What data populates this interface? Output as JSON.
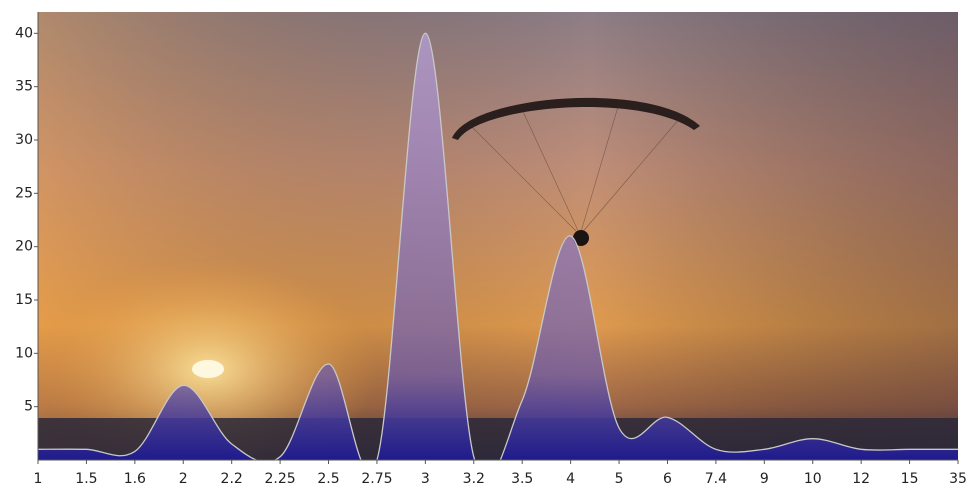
{
  "chart_data": {
    "type": "area",
    "categories": [
      "1",
      "1.5",
      "1.6",
      "2",
      "2.2",
      "2.25",
      "2.5",
      "2.75",
      "3",
      "3.2",
      "3.5",
      "4",
      "5",
      "6",
      "7.4",
      "9",
      "10",
      "12",
      "15",
      "35"
    ],
    "values": [
      1,
      1,
      0.8,
      7,
      1.5,
      0.3,
      9,
      0,
      40,
      0.3,
      5.6,
      21,
      3,
      4,
      1,
      1,
      2,
      1,
      1,
      1
    ],
    "color": "#6c5aa8",
    "ylim": [
      0,
      42
    ],
    "yticks": [
      5,
      10,
      15,
      20,
      25,
      30,
      35,
      40
    ]
  }
}
